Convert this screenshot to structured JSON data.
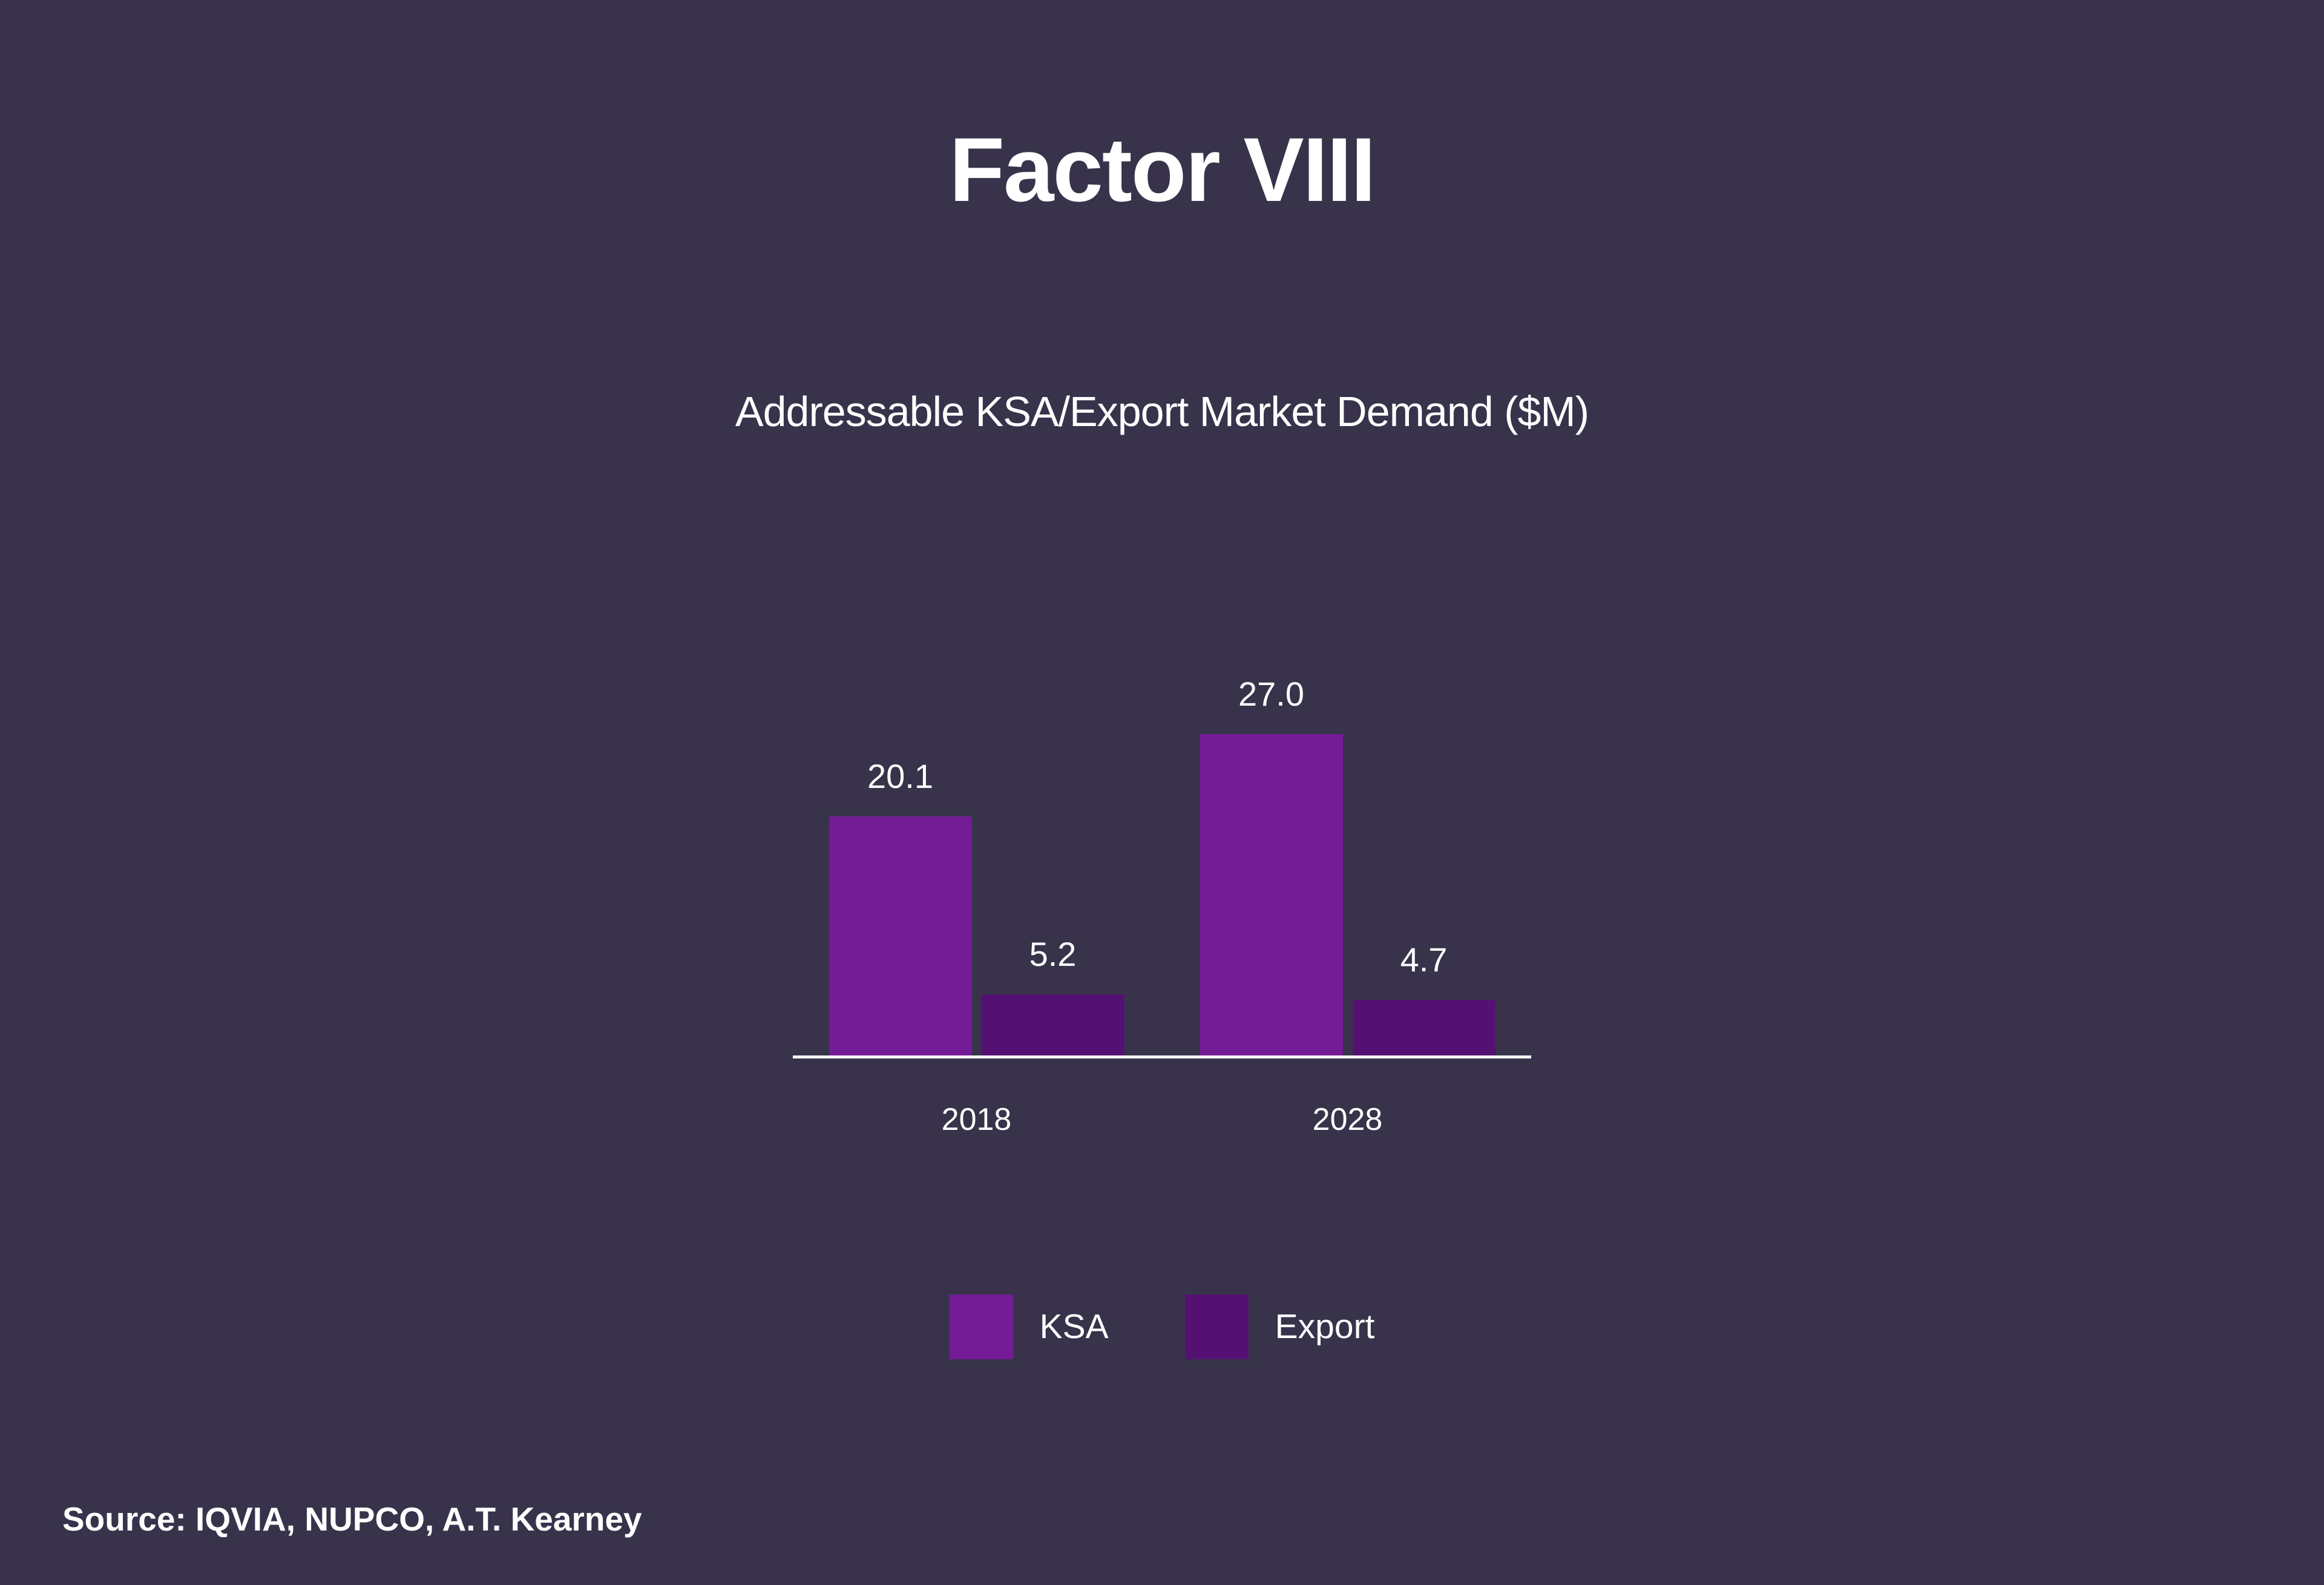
{
  "title": "Factor VIII",
  "source": "Source: IQVIA, NUPCO, A.T. Kearney",
  "colors": {
    "background": "#38334B",
    "ksa_bar": "#731C96",
    "export_bar": "#541173",
    "axis": "#FCFCFC",
    "text": "#FFFFFF"
  },
  "chart_data": {
    "type": "bar",
    "title": "Addressable KSA/Export Market Demand ($M)",
    "categories": [
      "2018",
      "2028"
    ],
    "series": [
      {
        "name": "KSA",
        "color": "#731C96",
        "values": [
          20.1,
          27.0
        ],
        "labels": [
          "20.1",
          "27.0"
        ]
      },
      {
        "name": "Export",
        "color": "#541173",
        "values": [
          5.2,
          4.7
        ],
        "labels": [
          "5.2",
          "4.7"
        ]
      }
    ],
    "xlabel": "",
    "ylabel": "",
    "ylim": [
      0,
      30
    ],
    "grid": false,
    "y_axis_visible": false,
    "legend_position": "bottom",
    "data_labels_visible": true
  }
}
